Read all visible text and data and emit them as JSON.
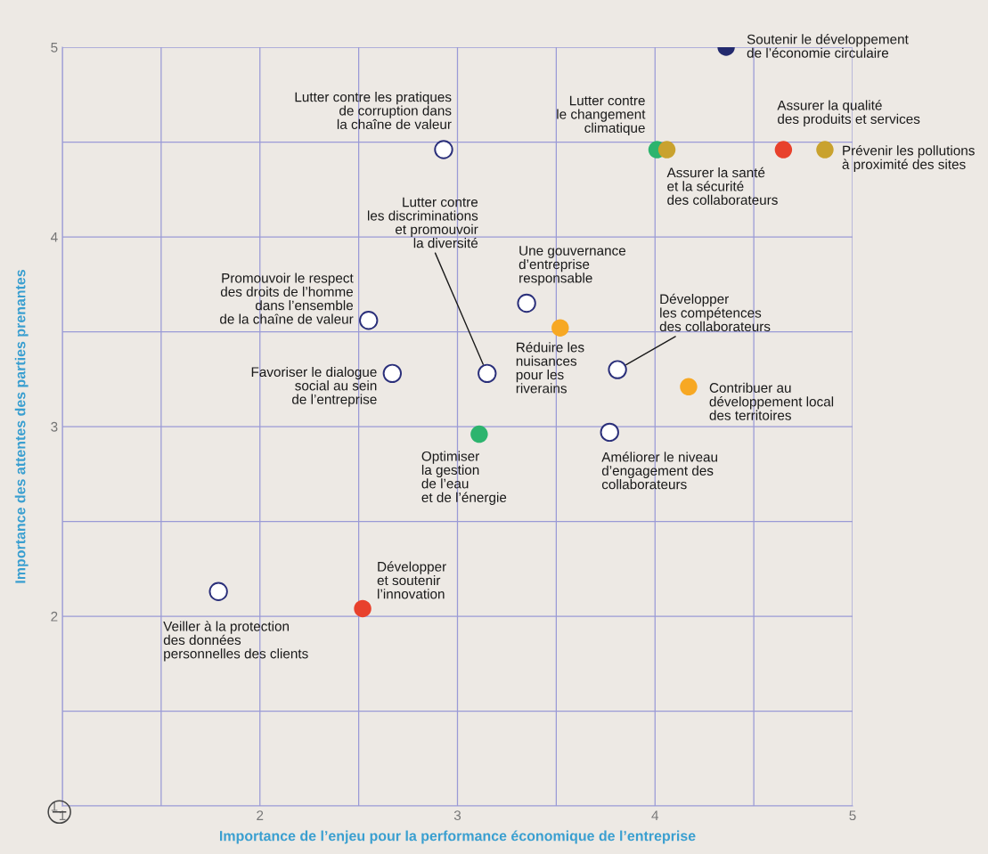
{
  "chart_data": {
    "type": "scatter",
    "xlabel": "Importance de l’enjeu pour la performance économique de l’entreprise",
    "ylabel": "Importance des attentes des parties prenantes",
    "xlim": [
      1,
      5
    ],
    "ylim": [
      1,
      5
    ],
    "xticks": [
      1,
      {
        "value": 1.5,
        "label": null
      },
      2,
      {
        "value": 2.5,
        "label": null
      },
      3,
      {
        "value": 3.5,
        "label": null
      },
      4,
      {
        "value": 4.5,
        "label": null
      },
      5
    ],
    "yticks": [
      1,
      {
        "value": 1.5,
        "label": null
      },
      2,
      {
        "value": 2.5,
        "label": null
      },
      3,
      {
        "value": 3.5,
        "label": null
      },
      4,
      {
        "value": 4.5,
        "label": null
      },
      5
    ],
    "grid": true,
    "marker": "circle",
    "series": [
      {
        "x": [
          4.36,
          2.93,
          4.01,
          4.06,
          4.65,
          4.86,
          3.15,
          2.55,
          2.67,
          3.35,
          3.52,
          3.81,
          4.17,
          3.77,
          3.11,
          1.79,
          2.52
        ],
        "values": [
          5.0,
          4.46,
          4.46,
          4.46,
          4.46,
          4.46,
          3.28,
          3.56,
          3.28,
          3.65,
          3.52,
          3.3,
          3.21,
          2.97,
          2.96,
          2.13,
          2.04
        ],
        "colors": [
          "#232a6e",
          "#ffffff",
          "#2db46e",
          "#c9a22e",
          "#e8412c",
          "#c9a22e",
          "#ffffff",
          "#ffffff",
          "#ffffff",
          "#ffffff",
          "#f7a823",
          "#ffffff",
          "#f7a823",
          "#ffffff",
          "#2db46e",
          "#ffffff",
          "#e8412c"
        ],
        "value_labels": [
          "Soutenir le développement\nde l’économie circulaire",
          "Lutter contre les pratiques\nde corruption dans\nla chaîne de valeur",
          "Lutter contre\nle changement\nclimatique",
          "Assurer la santé\net la sécurité\ndes collaborateurs",
          "Assurer la qualité\ndes produits et services",
          "Prévenir les pollutions\nà proximité des sites",
          "Lutter contre\nles discriminations\net promouvoir\nla diversité",
          "Promouvoir le respect\ndes droits de l’homme\ndans l’ensemble\nde la chaîne de valeur",
          "Favoriser le dialogue\nsocial au sein\nde l’entreprise",
          "Une gouvernance\nd’entreprise\nresponsable",
          "Réduire les\nnuisances\npour les\nriverains",
          "Développer\nles compétences\ndes collaborateurs",
          "Contribuer au\ndéveloppement local\ndes territoires",
          "Améliorer le niveau\nd’engagement des\ncollaborateurs",
          "Optimiser\nla gestion\nde l’eau\net de l’énergie",
          "Veiller à la protection\ndes données\npersonnelles des clients",
          "Développer\net soutenir\nl’innovation"
        ]
      }
    ]
  }
}
